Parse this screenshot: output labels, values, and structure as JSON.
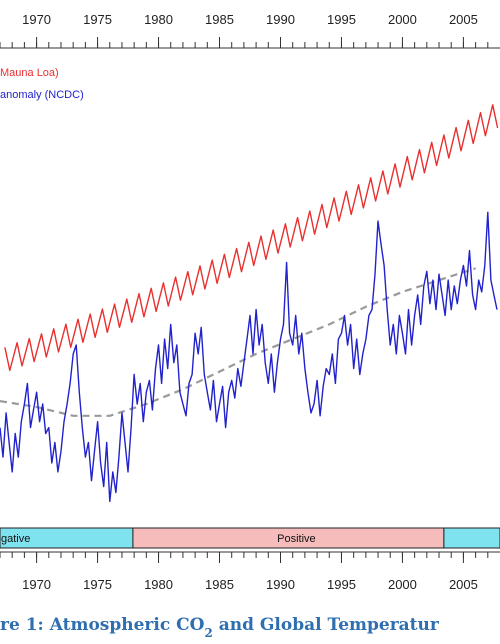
{
  "chart_data": {
    "type": "line",
    "xlim": [
      1967,
      2008
    ],
    "xticks": [
      1970,
      1975,
      1980,
      1985,
      1990,
      1995,
      2000,
      2005
    ],
    "xminorticks": [
      1967,
      1968,
      1969,
      1970,
      1971,
      1972,
      1973,
      1974,
      1975,
      1976,
      1977,
      1978,
      1979,
      1980,
      1981,
      1982,
      1983,
      1984,
      1985,
      1986,
      1987,
      1988,
      1989,
      1990,
      1991,
      1992,
      1993,
      1994,
      1995,
      1996,
      1997,
      1998,
      1999,
      2000,
      2001,
      2002,
      2003,
      2004,
      2005,
      2006,
      2007
    ],
    "ylim": [
      279,
      402
    ],
    "y2lim": [
      -0.43,
      1.18
    ],
    "series": [
      {
        "name": "Mauna Loa)",
        "color": "#e8312f",
        "x": [
          1967.4,
          1967.8,
          1968.4,
          1968.8,
          1969.4,
          1969.8,
          1970.4,
          1970.8,
          1971.4,
          1971.8,
          1972.4,
          1972.8,
          1973.4,
          1973.8,
          1974.4,
          1974.8,
          1975.4,
          1975.8,
          1976.4,
          1976.8,
          1977.4,
          1977.8,
          1978.4,
          1978.8,
          1979.4,
          1979.8,
          1980.4,
          1980.8,
          1981.4,
          1981.8,
          1982.4,
          1982.8,
          1983.4,
          1983.8,
          1984.4,
          1984.8,
          1985.4,
          1985.8,
          1986.4,
          1986.8,
          1987.4,
          1987.8,
          1988.4,
          1988.8,
          1989.4,
          1989.8,
          1990.4,
          1990.8,
          1991.4,
          1991.8,
          1992.4,
          1992.8,
          1993.4,
          1993.8,
          1994.4,
          1994.8,
          1995.4,
          1995.8,
          1996.4,
          1996.8,
          1997.4,
          1997.8,
          1998.4,
          1998.8,
          1999.4,
          1999.8,
          2000.4,
          2000.8,
          2001.4,
          2001.8,
          2002.4,
          2002.8,
          2003.4,
          2003.8,
          2004.4,
          2004.8,
          2005.4,
          2005.8,
          2006.4,
          2006.8,
          2007.4,
          2007.8
        ],
        "values": [
          325.0,
          319.0,
          326.2,
          320.2,
          327.3,
          321.3,
          328.5,
          322.5,
          329.8,
          323.8,
          331.0,
          325.0,
          332.3,
          326.3,
          333.6,
          327.6,
          334.9,
          328.9,
          336.2,
          330.2,
          337.5,
          331.5,
          338.9,
          332.9,
          340.3,
          334.3,
          341.7,
          335.7,
          343.2,
          337.2,
          344.6,
          338.6,
          346.1,
          340.1,
          347.6,
          341.6,
          349.1,
          343.1,
          350.6,
          344.6,
          352.2,
          346.2,
          353.8,
          347.8,
          355.4,
          349.4,
          357.0,
          351.0,
          358.6,
          352.6,
          360.3,
          354.3,
          362.0,
          356.0,
          363.7,
          357.7,
          365.4,
          359.4,
          367.1,
          361.1,
          368.9,
          362.9,
          370.7,
          364.7,
          372.5,
          366.5,
          374.4,
          368.4,
          376.2,
          370.2,
          378.1,
          372.1,
          380.0,
          374.0,
          381.9,
          375.9,
          383.8,
          377.8,
          385.8,
          379.8,
          387.8,
          381.8
        ]
      },
      {
        "name": "anomaly (NCDC)",
        "color": "#2222cc",
        "axis": "y2",
        "x": [
          1967,
          1967.25,
          1967.5,
          1967.75,
          1968,
          1968.25,
          1968.5,
          1968.75,
          1969,
          1969.25,
          1969.5,
          1969.75,
          1970,
          1970.25,
          1970.5,
          1970.75,
          1971,
          1971.25,
          1971.5,
          1971.75,
          1972,
          1972.25,
          1972.5,
          1972.75,
          1973,
          1973.25,
          1973.5,
          1973.75,
          1974,
          1974.25,
          1974.5,
          1974.75,
          1975,
          1975.25,
          1975.5,
          1975.75,
          1976,
          1976.25,
          1976.5,
          1976.75,
          1977,
          1977.25,
          1977.5,
          1977.75,
          1978,
          1978.25,
          1978.5,
          1978.75,
          1979,
          1979.25,
          1979.5,
          1979.75,
          1980,
          1980.25,
          1980.5,
          1980.75,
          1981,
          1981.25,
          1981.5,
          1981.75,
          1982,
          1982.25,
          1982.5,
          1982.75,
          1983,
          1983.25,
          1983.5,
          1983.75,
          1984,
          1984.25,
          1984.5,
          1984.75,
          1985,
          1985.25,
          1985.5,
          1985.75,
          1986,
          1986.25,
          1986.5,
          1986.75,
          1987,
          1987.25,
          1987.5,
          1987.75,
          1988,
          1988.25,
          1988.5,
          1988.75,
          1989,
          1989.25,
          1989.5,
          1989.75,
          1990,
          1990.25,
          1990.5,
          1990.75,
          1991,
          1991.25,
          1991.5,
          1991.75,
          1992,
          1992.25,
          1992.5,
          1992.75,
          1993,
          1993.25,
          1993.5,
          1993.75,
          1994,
          1994.25,
          1994.5,
          1994.75,
          1995,
          1995.25,
          1995.5,
          1995.75,
          1996,
          1996.25,
          1996.5,
          1996.75,
          1997,
          1997.25,
          1997.5,
          1997.75,
          1998,
          1998.25,
          1998.5,
          1998.75,
          1999,
          1999.25,
          1999.5,
          1999.75,
          2000,
          2000.25,
          2000.5,
          2000.75,
          2001,
          2001.25,
          2001.5,
          2001.75,
          2002,
          2002.25,
          2002.5,
          2002.75,
          2003,
          2003.25,
          2003.5,
          2003.75,
          2004,
          2004.25,
          2004.5,
          2004.75,
          2005,
          2005.25,
          2005.5,
          2005.75,
          2006,
          2006.25,
          2006.5,
          2006.75,
          2007,
          2007.25,
          2007.5,
          2007.75
        ],
        "values": [
          -0.1,
          -0.2,
          -0.05,
          -0.15,
          -0.25,
          -0.12,
          -0.2,
          -0.08,
          -0.02,
          0.05,
          -0.1,
          -0.04,
          0.02,
          -0.08,
          -0.02,
          -0.12,
          -0.1,
          -0.22,
          -0.15,
          -0.25,
          -0.18,
          -0.08,
          -0.02,
          0.05,
          0.15,
          0.18,
          0.02,
          -0.1,
          -0.2,
          -0.15,
          -0.28,
          -0.18,
          -0.08,
          -0.22,
          -0.3,
          -0.15,
          -0.35,
          -0.25,
          -0.32,
          -0.2,
          -0.05,
          -0.15,
          -0.25,
          -0.1,
          0.08,
          -0.02,
          0.05,
          -0.08,
          0.02,
          0.06,
          -0.04,
          0.1,
          0.18,
          0.05,
          0.2,
          0.1,
          0.25,
          0.12,
          0.18,
          0.02,
          -0.02,
          -0.06,
          0.05,
          0.08,
          0.22,
          0.15,
          0.24,
          0.08,
          0.02,
          -0.04,
          0.06,
          -0.08,
          -0.02,
          0.04,
          -0.1,
          0.02,
          0.06,
          0.0,
          0.1,
          0.04,
          0.12,
          0.2,
          0.28,
          0.15,
          0.3,
          0.18,
          0.25,
          0.12,
          0.05,
          0.15,
          0.02,
          0.12,
          0.2,
          0.25,
          0.46,
          0.22,
          0.18,
          0.28,
          0.15,
          0.22,
          0.1,
          0.02,
          -0.05,
          -0.02,
          0.06,
          -0.06,
          0.04,
          0.1,
          0.08,
          0.15,
          0.05,
          0.2,
          0.22,
          0.28,
          0.18,
          0.25,
          0.1,
          0.2,
          0.08,
          0.15,
          0.2,
          0.28,
          0.3,
          0.42,
          0.6,
          0.52,
          0.45,
          0.3,
          0.18,
          0.25,
          0.15,
          0.28,
          0.22,
          0.15,
          0.3,
          0.18,
          0.28,
          0.35,
          0.25,
          0.38,
          0.43,
          0.32,
          0.4,
          0.3,
          0.42,
          0.35,
          0.28,
          0.4,
          0.3,
          0.38,
          0.32,
          0.4,
          0.45,
          0.38,
          0.5,
          0.35,
          0.3,
          0.4,
          0.36,
          0.45,
          0.63,
          0.4,
          0.35,
          0.3
        ]
      }
    ],
    "trend": {
      "color": "#9a9a9a",
      "axis": "y2",
      "x": [
        1967,
        1970,
        1973,
        1976,
        1979,
        1982,
        1985,
        1988,
        1991,
        1994,
        1997,
        2000,
        2003,
        2006
      ],
      "values": [
        -0.01,
        -0.03,
        -0.06,
        -0.06,
        -0.02,
        0.03,
        0.09,
        0.15,
        0.2,
        0.25,
        0.31,
        0.36,
        0.4,
        0.44
      ]
    },
    "phases": {
      "labels": [
        "gative",
        "Positive",
        null
      ],
      "boundaries": [
        1977.9,
        2003.4
      ],
      "colors": [
        "#7fe3ef",
        "#f6bcbc",
        "#7fe3ef"
      ]
    }
  },
  "caption": {
    "before": "re 1: Atmospheric CO",
    "sub": "2",
    "after": " and Global Temperatur",
    "color": "#2f6fb0"
  }
}
